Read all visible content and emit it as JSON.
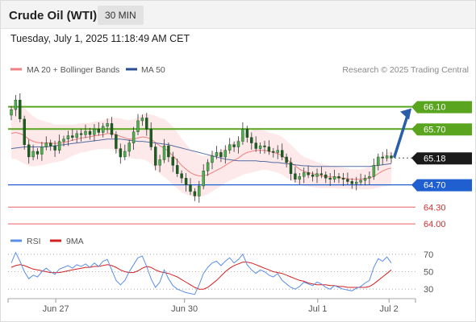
{
  "header": {
    "title": "Crude Oil (WTI)",
    "timeframe": "30 MIN",
    "timestamp": "Tuesday, July 1, 2025 11:18:49 AM CET"
  },
  "colors": {
    "bollinger": "#f08080",
    "ma50": "#2a4d8f",
    "resistance": "#5aa51f",
    "support": "#1f5fd0",
    "target_support": "#e86060",
    "candle": "#2e7d32",
    "rsi": "#5b8ee6",
    "rsi_ma": "#d62020",
    "arrow": "#2a5ea8"
  },
  "chart_data": [
    {
      "type": "candlestick",
      "title": "",
      "legend": [
        {
          "name": "MA 20 + Bollinger Bands",
          "color": "#f08080"
        },
        {
          "name": "MA 50",
          "color": "#2a4d8f"
        }
      ],
      "legend_placement": "top-left",
      "attribution": "Research © 2025 Trading Central",
      "ylim": [
        63.9,
        66.6
      ],
      "x_ticks": [
        {
          "label": "Jun 27",
          "pos": 0.117
        },
        {
          "label": "Jun 30",
          "pos": 0.433
        },
        {
          "label": "Jul 1",
          "pos": 0.76
        },
        {
          "label": "Jul 2",
          "pos": 0.935
        }
      ],
      "levels": [
        {
          "label": "66.10",
          "value": 66.1,
          "kind": "resistance"
        },
        {
          "label": "65.70",
          "value": 65.7,
          "kind": "resistance"
        },
        {
          "label": "65.18",
          "value": 65.18,
          "kind": "last"
        },
        {
          "label": "64.70",
          "value": 64.7,
          "kind": "support"
        },
        {
          "label": "64.30",
          "value": 64.3,
          "kind": "target_support"
        },
        {
          "label": "64.00",
          "value": 64.0,
          "kind": "target_support"
        }
      ],
      "close": [
        66.05,
        66.22,
        65.88,
        65.42,
        65.2,
        65.3,
        65.25,
        65.38,
        65.45,
        65.4,
        65.32,
        65.48,
        65.52,
        65.58,
        65.55,
        65.62,
        65.6,
        65.66,
        65.6,
        65.7,
        65.64,
        65.75,
        65.8,
        65.6,
        65.35,
        65.2,
        65.3,
        65.45,
        65.65,
        65.85,
        65.9,
        65.7,
        65.38,
        65.05,
        65.15,
        65.4,
        65.2,
        65.05,
        64.9,
        64.82,
        64.7,
        64.58,
        64.5,
        64.68,
        64.95,
        65.1,
        65.22,
        65.28,
        65.2,
        65.32,
        65.42,
        65.38,
        65.48,
        65.7,
        65.55,
        65.45,
        65.35,
        65.4,
        65.38,
        65.3,
        65.28,
        65.32,
        65.2,
        65.1,
        64.9,
        64.8,
        64.85,
        64.92,
        64.88,
        64.85,
        64.9,
        64.88,
        64.82,
        64.8,
        64.85,
        64.82,
        64.8,
        64.76,
        64.72,
        64.75,
        64.78,
        64.82,
        64.85,
        65.05,
        65.2,
        65.18,
        65.22,
        65.18
      ],
      "ma20": [
        65.62,
        65.64,
        65.62,
        65.58,
        65.52,
        65.48,
        65.46,
        65.45,
        65.45,
        65.45,
        65.44,
        65.45,
        65.46,
        65.48,
        65.5,
        65.52,
        65.54,
        65.55,
        65.56,
        65.58,
        65.59,
        65.6,
        65.62,
        65.62,
        65.6,
        65.57,
        65.54,
        65.52,
        65.52,
        65.54,
        65.56,
        65.55,
        65.52,
        65.46,
        65.4,
        65.36,
        65.3,
        65.22,
        65.14,
        65.05,
        64.98,
        64.92,
        64.88,
        64.86,
        64.86,
        64.88,
        64.92,
        64.96,
        65.0,
        65.05,
        65.1,
        65.14,
        65.18,
        65.24,
        65.28,
        65.3,
        65.32,
        65.32,
        65.32,
        65.3,
        65.28,
        65.26,
        65.22,
        65.16,
        65.1,
        65.04,
        64.98,
        64.94,
        64.92,
        64.9,
        64.88,
        64.86,
        64.85,
        64.84,
        64.84,
        64.83,
        64.82,
        64.81,
        64.8,
        64.8,
        64.8,
        64.81,
        64.82,
        64.85,
        64.9,
        64.95,
        64.98,
        65.0
      ],
      "ma50": [
        65.35,
        65.36,
        65.37,
        65.38,
        65.38,
        65.38,
        65.38,
        65.38,
        65.38,
        65.39,
        65.4,
        65.41,
        65.42,
        65.43,
        65.44,
        65.45,
        65.46,
        65.47,
        65.48,
        65.49,
        65.5,
        65.51,
        65.52,
        65.52,
        65.52,
        65.52,
        65.51,
        65.5,
        65.49,
        65.48,
        65.48,
        65.47,
        65.46,
        65.45,
        65.44,
        65.43,
        65.42,
        65.4,
        65.38,
        65.36,
        65.34,
        65.32,
        65.3,
        65.28,
        65.26,
        65.24,
        65.22,
        65.2,
        65.18,
        65.16,
        65.15,
        65.14,
        65.13,
        65.13,
        65.13,
        65.13,
        65.13,
        65.12,
        65.12,
        65.11,
        65.1,
        65.1,
        65.09,
        65.08,
        65.07,
        65.06,
        65.05,
        65.04,
        65.04,
        65.03,
        65.03,
        65.03,
        65.03,
        65.03,
        65.03,
        65.03,
        65.03,
        65.03,
        65.03,
        65.03,
        65.03,
        65.03,
        65.03,
        65.04,
        65.05,
        65.06,
        65.07,
        65.08
      ],
      "bb_width": [
        0.45,
        0.48,
        0.5,
        0.5,
        0.48,
        0.45,
        0.42,
        0.4,
        0.38,
        0.36,
        0.34,
        0.33,
        0.32,
        0.3,
        0.28,
        0.27,
        0.26,
        0.26,
        0.25,
        0.25,
        0.25,
        0.26,
        0.27,
        0.28,
        0.3,
        0.32,
        0.33,
        0.34,
        0.35,
        0.38,
        0.4,
        0.42,
        0.44,
        0.48,
        0.5,
        0.52,
        0.52,
        0.52,
        0.5,
        0.48,
        0.45,
        0.42,
        0.4,
        0.38,
        0.36,
        0.35,
        0.34,
        0.33,
        0.32,
        0.32,
        0.32,
        0.33,
        0.34,
        0.36,
        0.38,
        0.38,
        0.38,
        0.36,
        0.35,
        0.34,
        0.34,
        0.34,
        0.34,
        0.33,
        0.32,
        0.3,
        0.28,
        0.26,
        0.25,
        0.24,
        0.23,
        0.22,
        0.21,
        0.2,
        0.2,
        0.19,
        0.19,
        0.18,
        0.18,
        0.18,
        0.18,
        0.19,
        0.2,
        0.22,
        0.25,
        0.28,
        0.3,
        0.3
      ],
      "forecast_arrow": {
        "from": 65.18,
        "to": 66.1
      }
    },
    {
      "type": "line",
      "title": "",
      "legend": [
        {
          "name": "RSI",
          "color": "#5b8ee6"
        },
        {
          "name": "9MA",
          "color": "#d62020"
        }
      ],
      "ylim": [
        20,
        80
      ],
      "y_ticks": [
        {
          "label": "70",
          "value": 70
        },
        {
          "label": "50",
          "value": 50
        },
        {
          "label": "30",
          "value": 30
        }
      ],
      "rsi": [
        60,
        72,
        62,
        50,
        42,
        46,
        44,
        50,
        54,
        50,
        47,
        53,
        55,
        57,
        54,
        58,
        56,
        59,
        55,
        60,
        56,
        62,
        64,
        52,
        40,
        35,
        40,
        50,
        58,
        66,
        68,
        56,
        42,
        32,
        38,
        52,
        42,
        34,
        30,
        28,
        26,
        25,
        24,
        35,
        48,
        55,
        60,
        62,
        57,
        62,
        66,
        60,
        64,
        70,
        58,
        52,
        48,
        52,
        50,
        46,
        44,
        48,
        40,
        36,
        32,
        30,
        33,
        38,
        36,
        34,
        38,
        36,
        32,
        30,
        34,
        32,
        30,
        29,
        28,
        31,
        33,
        37,
        40,
        55,
        65,
        62,
        67,
        60
      ],
      "ma9": [
        55,
        57,
        58,
        57,
        55,
        53,
        52,
        51,
        50,
        49,
        49,
        49,
        50,
        51,
        52,
        53,
        54,
        55,
        55,
        56,
        56,
        57,
        58,
        57,
        55,
        52,
        50,
        49,
        49,
        51,
        54,
        56,
        55,
        52,
        50,
        49,
        48,
        46,
        44,
        41,
        38,
        35,
        32,
        30,
        30,
        32,
        36,
        40,
        45,
        50,
        54,
        57,
        59,
        61,
        61,
        60,
        58,
        56,
        54,
        52,
        50,
        49,
        48,
        46,
        44,
        42,
        40,
        39,
        37,
        36,
        35,
        35,
        35,
        34,
        34,
        33,
        33,
        32,
        32,
        32,
        32,
        32,
        33,
        36,
        40,
        44,
        48,
        52
      ]
    }
  ]
}
